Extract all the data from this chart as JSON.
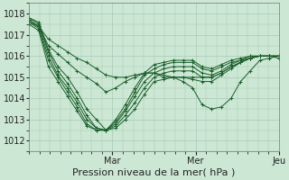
{
  "bg_color": "#cce8d4",
  "grid_color": "#a8c8b8",
  "line_color": "#1a5e2a",
  "xlabel": "Pression niveau de la mer( hPa )",
  "xlabel_fontsize": 8,
  "tick_label_fontsize": 7,
  "ylim": [
    1011.5,
    1018.5
  ],
  "yticks": [
    1012,
    1013,
    1014,
    1015,
    1016,
    1017,
    1018
  ],
  "xlim": [
    0,
    72
  ],
  "day_ticks": [
    24,
    48,
    72
  ],
  "day_labels": [
    "Mar",
    "Mer",
    "Jeu"
  ],
  "minor_x_interval": 3,
  "series": [
    [
      1017.8,
      1017.6,
      1016.3,
      1015.5,
      1015.0,
      1014.3,
      1013.5,
      1013.0,
      1012.5,
      1012.6,
      1013.0,
      1013.5,
      1014.2,
      1014.8,
      1014.9,
      1015.0,
      1014.8,
      1014.5,
      1013.7,
      1013.5,
      1013.6,
      1014.0,
      1014.8,
      1015.3,
      1015.8,
      1015.9,
      1016.0
    ],
    [
      1017.8,
      1017.5,
      1016.2,
      1015.3,
      1014.7,
      1014.0,
      1013.2,
      1012.6,
      1012.5,
      1012.7,
      1013.2,
      1013.8,
      1014.5,
      1015.0,
      1015.2,
      1015.3,
      1015.3,
      1015.3,
      1015.0,
      1015.0,
      1015.2,
      1015.5,
      1015.7,
      1015.9,
      1016.0,
      1016.0,
      1016.0
    ],
    [
      1017.7,
      1017.4,
      1016.0,
      1015.1,
      1014.5,
      1013.8,
      1013.0,
      1012.6,
      1012.5,
      1012.8,
      1013.4,
      1014.1,
      1014.8,
      1015.2,
      1015.4,
      1015.5,
      1015.5,
      1015.5,
      1015.2,
      1015.1,
      1015.3,
      1015.6,
      1015.8,
      1015.9,
      1016.0,
      1016.0,
      1016.0
    ],
    [
      1017.6,
      1017.3,
      1015.8,
      1015.0,
      1014.3,
      1013.6,
      1012.8,
      1012.5,
      1012.5,
      1012.9,
      1013.5,
      1014.3,
      1015.1,
      1015.4,
      1015.6,
      1015.7,
      1015.7,
      1015.7,
      1015.4,
      1015.3,
      1015.5,
      1015.7,
      1015.8,
      1016.0,
      1016.0,
      1016.0,
      1016.0
    ],
    [
      1017.5,
      1017.2,
      1015.5,
      1014.8,
      1014.1,
      1013.4,
      1012.7,
      1012.5,
      1012.5,
      1013.0,
      1013.7,
      1014.5,
      1015.2,
      1015.6,
      1015.7,
      1015.8,
      1015.8,
      1015.8,
      1015.5,
      1015.4,
      1015.6,
      1015.8,
      1015.9,
      1016.0,
      1016.0,
      1016.0,
      1016.0
    ],
    [
      1017.7,
      1017.4,
      1016.5,
      1016.1,
      1015.7,
      1015.3,
      1015.0,
      1014.7,
      1014.3,
      1014.5,
      1014.8,
      1015.0,
      1015.2,
      1015.2,
      1015.1,
      1015.0,
      1015.0,
      1014.9,
      1014.8,
      1014.8,
      1015.1,
      1015.4,
      1015.7,
      1015.9,
      1016.0,
      1016.0,
      1015.9
    ],
    [
      1017.6,
      1017.4,
      1016.8,
      1016.5,
      1016.2,
      1015.9,
      1015.7,
      1015.4,
      1015.1,
      1015.0,
      1015.0,
      1015.1,
      1015.2,
      1015.2,
      1015.0,
      1015.0,
      1015.0,
      1015.0,
      1015.0,
      1015.0,
      1015.2,
      1015.5,
      1015.7,
      1015.9,
      1016.0,
      1016.0,
      1016.0
    ]
  ]
}
